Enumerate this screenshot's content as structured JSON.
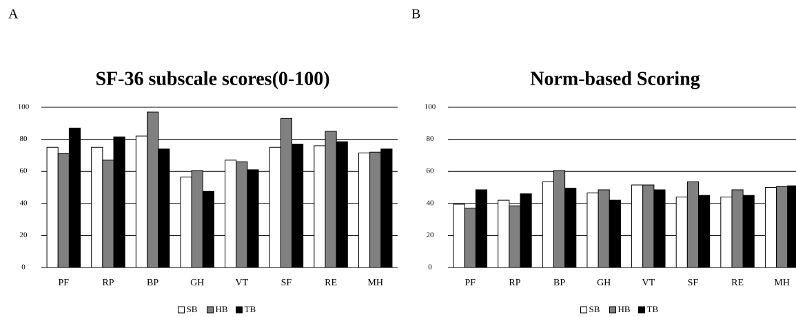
{
  "chart_data": [
    {
      "type": "bar",
      "panel": "A",
      "title": "SF-36 subscale scores(0-100)",
      "categories": [
        "PF",
        "RP",
        "BP",
        "GH",
        "VT",
        "SF",
        "RE",
        "MH"
      ],
      "series": [
        {
          "name": "SB",
          "color": "#ffffff",
          "values": [
            75,
            75,
            82,
            56.5,
            67,
            75,
            76,
            71.5
          ]
        },
        {
          "name": "HB",
          "color": "#808080",
          "values": [
            71,
            67,
            97,
            60.5,
            66,
            93,
            85,
            72
          ]
        },
        {
          "name": "TB",
          "color": "#000000",
          "values": [
            87,
            81.5,
            74,
            47.5,
            61,
            77,
            78.5,
            74
          ]
        }
      ],
      "ylim": [
        0,
        100
      ],
      "yticks": [
        0,
        20,
        40,
        60,
        80,
        100
      ],
      "grid": true,
      "legend": "bottom"
    },
    {
      "type": "bar",
      "panel": "B",
      "title": "Norm-based Scoring",
      "categories": [
        "PF",
        "RP",
        "BP",
        "GH",
        "VT",
        "SF",
        "RE",
        "MH"
      ],
      "series": [
        {
          "name": "SB",
          "color": "#ffffff",
          "values": [
            39.5,
            42,
            53.5,
            46.5,
            51.5,
            44,
            44,
            50
          ]
        },
        {
          "name": "HB",
          "color": "#808080",
          "values": [
            37,
            38.5,
            60.5,
            48.5,
            51.5,
            53.5,
            48.5,
            50.5
          ]
        },
        {
          "name": "TB",
          "color": "#000000",
          "values": [
            48.5,
            46,
            49.5,
            42,
            48.5,
            45,
            45,
            51
          ]
        }
      ],
      "ylim": [
        0,
        100
      ],
      "yticks": [
        0,
        20,
        40,
        60,
        80,
        100
      ],
      "grid": true,
      "legend": "bottom"
    }
  ]
}
